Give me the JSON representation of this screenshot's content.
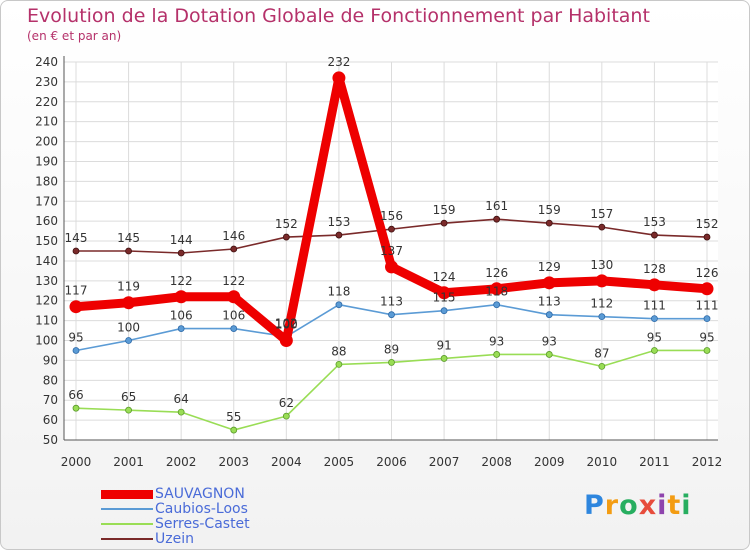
{
  "chart_data": {
    "type": "line",
    "title": "Evolution de la Dotation Globale de Fonctionnement par Habitant",
    "subtitle": "(en € et par an)",
    "xlabel": "",
    "ylabel": "",
    "ylim": [
      50,
      240
    ],
    "yticks": [
      50,
      60,
      70,
      80,
      90,
      100,
      110,
      120,
      130,
      140,
      150,
      160,
      170,
      180,
      190,
      200,
      210,
      220,
      230,
      240
    ],
    "categories": [
      "2000",
      "2001",
      "2002",
      "2003",
      "2004",
      "2005",
      "2006",
      "2007",
      "2008",
      "2009",
      "2010",
      "2011",
      "2012"
    ],
    "grid": true,
    "series": [
      {
        "name": "SAUVAGNON",
        "color": "#ee0000",
        "values": [
          117,
          119,
          122,
          122,
          100,
          232,
          137,
          124,
          126,
          129,
          130,
          128,
          126
        ]
      },
      {
        "name": "Caubios-Loos",
        "color": "#5b9bd5",
        "values": [
          95,
          100,
          106,
          106,
          102,
          118,
          113,
          115,
          118,
          113,
          112,
          111,
          111
        ]
      },
      {
        "name": "Serres-Castet",
        "color": "#99dd55",
        "values": [
          66,
          65,
          64,
          55,
          62,
          88,
          89,
          91,
          93,
          93,
          87,
          95,
          95
        ]
      },
      {
        "name": "Uzein",
        "color": "#7a2a2a",
        "values": [
          145,
          145,
          144,
          146,
          152,
          153,
          156,
          159,
          161,
          159,
          157,
          153,
          152
        ]
      }
    ]
  },
  "logo": {
    "letters": [
      "P",
      "r",
      "o",
      "x",
      "i",
      "t",
      "i"
    ],
    "colors": [
      "#2e86de",
      "#f39c12",
      "#27ae60",
      "#e74c3c",
      "#8e44ad",
      "#f39c12",
      "#27ae60"
    ]
  }
}
